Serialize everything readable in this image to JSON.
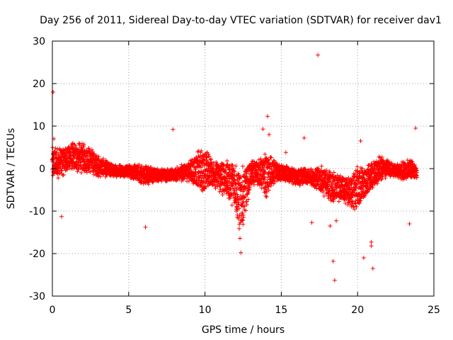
{
  "chart_data": {
    "type": "scatter",
    "title": "Day 256 of 2011, Sidereal Day-to-day VTEC variation (SDTVAR) for receiver dav1",
    "xlabel": "GPS time / hours",
    "ylabel": "SDTVAR / TECUs",
    "xlim": [
      0,
      25
    ],
    "ylim": [
      -30,
      30
    ],
    "x_ticks": [
      0,
      5,
      10,
      15,
      20,
      25
    ],
    "x_tick_labels": [
      "0",
      "5",
      "10",
      "15",
      "20",
      "25"
    ],
    "y_ticks": [
      -30,
      -20,
      -10,
      0,
      10,
      20,
      30
    ],
    "y_tick_labels": [
      "-30",
      "-20",
      "-10",
      "0",
      "10",
      "20",
      "30"
    ],
    "grid": true,
    "marker": "plus",
    "color": "#ff0000",
    "series": [
      {
        "name": "dav1",
        "band": [
          {
            "x": 0.0,
            "low": -3,
            "high": 5
          },
          {
            "x": 0.5,
            "low": -2,
            "high": 5
          },
          {
            "x": 1.0,
            "low": -1,
            "high": 6
          },
          {
            "x": 1.5,
            "low": -1,
            "high": 6
          },
          {
            "x": 2.0,
            "low": -1,
            "high": 6
          },
          {
            "x": 2.5,
            "low": -1,
            "high": 5
          },
          {
            "x": 3.0,
            "low": -2,
            "high": 3
          },
          {
            "x": 3.5,
            "low": -2,
            "high": 2
          },
          {
            "x": 4.0,
            "low": -2,
            "high": 1
          },
          {
            "x": 5.0,
            "low": -2,
            "high": 1
          },
          {
            "x": 6.0,
            "low": -4,
            "high": 1
          },
          {
            "x": 7.0,
            "low": -3,
            "high": 0
          },
          {
            "x": 8.0,
            "low": -3,
            "high": 0
          },
          {
            "x": 9.0,
            "low": -3,
            "high": 2
          },
          {
            "x": 9.5,
            "low": -5,
            "high": 4
          },
          {
            "x": 10.0,
            "low": -6,
            "high": 5
          },
          {
            "x": 10.5,
            "low": -4,
            "high": 2
          },
          {
            "x": 11.0,
            "low": -6,
            "high": 2
          },
          {
            "x": 11.5,
            "low": -7,
            "high": 2
          },
          {
            "x": 12.0,
            "low": -10,
            "high": 2
          },
          {
            "x": 12.3,
            "low": -17,
            "high": 0
          },
          {
            "x": 12.6,
            "low": -12,
            "high": 1
          },
          {
            "x": 13.0,
            "low": -4,
            "high": 2
          },
          {
            "x": 13.5,
            "low": -4,
            "high": 2
          },
          {
            "x": 14.0,
            "low": -7,
            "high": 4
          },
          {
            "x": 14.5,
            "low": -4,
            "high": 2
          },
          {
            "x": 15.0,
            "low": -3,
            "high": 1
          },
          {
            "x": 16.0,
            "low": -4,
            "high": 0
          },
          {
            "x": 17.0,
            "low": -4,
            "high": 0
          },
          {
            "x": 17.5,
            "low": -6,
            "high": 1
          },
          {
            "x": 18.0,
            "low": -7,
            "high": 0
          },
          {
            "x": 18.5,
            "low": -8,
            "high": -1
          },
          {
            "x": 19.0,
            "low": -8,
            "high": -1
          },
          {
            "x": 19.5,
            "low": -9,
            "high": -2
          },
          {
            "x": 20.0,
            "low": -10,
            "high": 1
          },
          {
            "x": 20.5,
            "low": -7,
            "high": 0
          },
          {
            "x": 21.0,
            "low": -5,
            "high": 2
          },
          {
            "x": 21.5,
            "low": -3,
            "high": 3
          },
          {
            "x": 22.0,
            "low": -2,
            "high": 2
          },
          {
            "x": 22.5,
            "low": -2,
            "high": 1
          },
          {
            "x": 23.0,
            "low": -3,
            "high": 2
          },
          {
            "x": 23.5,
            "low": -2,
            "high": 2
          },
          {
            "x": 23.9,
            "low": -3,
            "high": 1
          }
        ],
        "outliers": [
          {
            "x": 0.05,
            "y": 18
          },
          {
            "x": 0.1,
            "y": 7
          },
          {
            "x": 0.6,
            "y": -11.3
          },
          {
            "x": 6.1,
            "y": -13.8
          },
          {
            "x": 7.9,
            "y": 9.2
          },
          {
            "x": 12.35,
            "y": -19.8
          },
          {
            "x": 13.8,
            "y": 9.3
          },
          {
            "x": 14.1,
            "y": 12.3
          },
          {
            "x": 14.2,
            "y": 8
          },
          {
            "x": 15.3,
            "y": 3.8
          },
          {
            "x": 16.5,
            "y": 7.2
          },
          {
            "x": 17.4,
            "y": 26.7
          },
          {
            "x": 17.0,
            "y": -12.7
          },
          {
            "x": 18.2,
            "y": -13.5
          },
          {
            "x": 18.4,
            "y": -21.8
          },
          {
            "x": 18.5,
            "y": -26.3
          },
          {
            "x": 18.6,
            "y": -12.3
          },
          {
            "x": 20.2,
            "y": 6.5
          },
          {
            "x": 20.4,
            "y": -21
          },
          {
            "x": 20.9,
            "y": -17.3
          },
          {
            "x": 20.9,
            "y": -18.2
          },
          {
            "x": 21.0,
            "y": -23.5
          },
          {
            "x": 23.4,
            "y": -13
          },
          {
            "x": 23.8,
            "y": 9.5
          }
        ]
      }
    ]
  }
}
